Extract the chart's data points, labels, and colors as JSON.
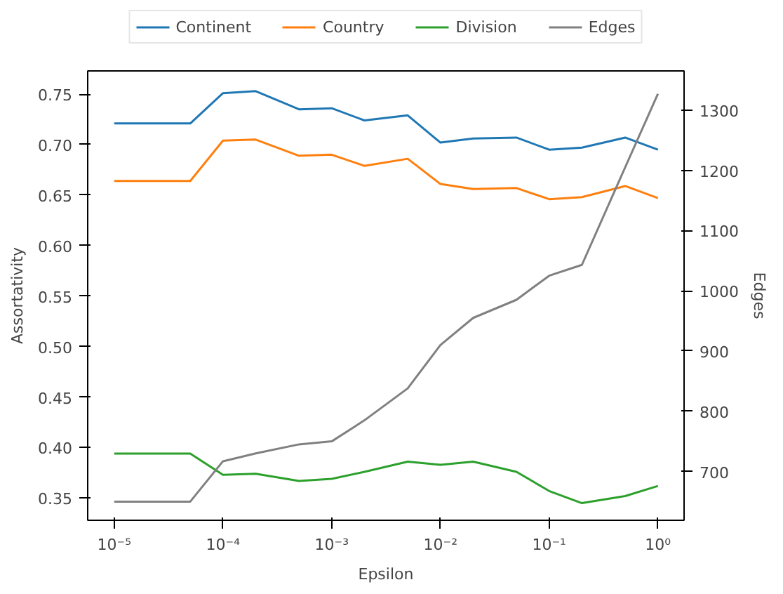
{
  "chart_data": {
    "type": "line",
    "xlabel": "Epsilon",
    "ylabel": "Assortativity",
    "y2label": "Edges",
    "log": "x",
    "legend": "top",
    "grid": false,
    "x": [
      1e-05,
      2e-05,
      5e-05,
      0.0001,
      0.0002,
      0.0005,
      0.001,
      0.002,
      0.005,
      0.01,
      0.02,
      0.05,
      0.1,
      0.2,
      0.5,
      1
    ],
    "xlim": [
      5.7e-06,
      1.74
    ],
    "xticks": [
      {
        "value": 1e-05,
        "label": "10⁻⁵"
      },
      {
        "value": 0.0001,
        "label": "10⁻⁴"
      },
      {
        "value": 0.001,
        "label": "10⁻³"
      },
      {
        "value": 0.01,
        "label": "10⁻²"
      },
      {
        "value": 0.1,
        "label": "10⁻¹"
      },
      {
        "value": 1,
        "label": "10⁰"
      }
    ],
    "ylim": [
      0.328,
      0.773
    ],
    "yticks": [
      {
        "value": 0.35,
        "label": "0.35"
      },
      {
        "value": 0.4,
        "label": "0.40"
      },
      {
        "value": 0.45,
        "label": "0.45"
      },
      {
        "value": 0.5,
        "label": "0.50"
      },
      {
        "value": 0.55,
        "label": "0.55"
      },
      {
        "value": 0.6,
        "label": "0.60"
      },
      {
        "value": 0.65,
        "label": "0.65"
      },
      {
        "value": 0.7,
        "label": "0.70"
      },
      {
        "value": 0.75,
        "label": "0.75"
      }
    ],
    "y2lim": [
      619,
      1365
    ],
    "y2ticks": [
      700,
      800,
      900,
      1000,
      1100,
      1200,
      1300
    ],
    "series": [
      {
        "name": "Continent",
        "color": "#1f77b4",
        "values": [
          0.721,
          0.721,
          0.721,
          0.751,
          0.753,
          0.735,
          0.736,
          0.724,
          0.729,
          0.702,
          0.706,
          0.707,
          0.695,
          0.697,
          0.707,
          0.695
        ]
      },
      {
        "name": "Country",
        "color": "#ff7f0e",
        "values": [
          0.664,
          0.664,
          0.664,
          0.704,
          0.705,
          0.689,
          0.69,
          0.679,
          0.686,
          0.661,
          0.656,
          0.657,
          0.646,
          0.648,
          0.659,
          0.647
        ]
      },
      {
        "name": "Division",
        "color": "#2ca02c",
        "values": [
          0.394,
          0.394,
          0.394,
          0.373,
          0.374,
          0.367,
          0.369,
          0.376,
          0.386,
          0.383,
          0.386,
          0.376,
          0.357,
          0.345,
          0.352,
          0.362
        ]
      },
      {
        "name": "Edges",
        "color": "#808080",
        "axis": "y2",
        "values": [
          650,
          650,
          650,
          717,
          730,
          745,
          750,
          785,
          838,
          910,
          955,
          985,
          1025,
          1043,
          1205,
          1327
        ]
      }
    ]
  }
}
